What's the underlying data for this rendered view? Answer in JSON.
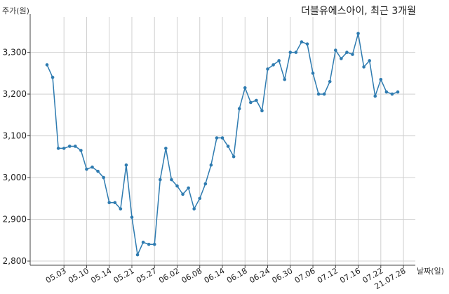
{
  "chart_data": {
    "type": "line",
    "title": "더블유에스아이, 최근 3개월",
    "ylabel": "주가(원)",
    "xlabel": "날짜(일)",
    "ylim": [
      2790,
      3385
    ],
    "yticks": [
      2800,
      2900,
      3000,
      3100,
      3200,
      3300
    ],
    "ytick_labels": [
      "2,800",
      "2,900",
      "3,000",
      "3,100",
      "3,200",
      "3,300"
    ],
    "xtick_labels": [
      "05.03",
      "05.10",
      "05.14",
      "05.21",
      "05.27",
      "06.02",
      "06.08",
      "06.14",
      "06.18",
      "06.24",
      "06.30",
      "07.06",
      "07.12",
      "07.16",
      "07.22",
      "21.07.28"
    ],
    "xtick_positions": [
      3,
      7,
      11,
      15,
      19,
      23,
      27,
      31,
      35,
      39,
      43,
      47,
      51,
      55,
      59,
      63
    ],
    "grid": true,
    "line_color": "#2e7bb0",
    "series": [
      {
        "values": [
          3270,
          3240,
          3070,
          3070,
          3075,
          3075,
          3065,
          3020,
          3025,
          3015,
          3000,
          2940,
          2940,
          2925,
          3030,
          2905,
          2815,
          2845,
          2840,
          2840,
          2995,
          3070,
          2995,
          2980,
          2960,
          2975,
          2925,
          2950,
          2985,
          3030,
          3095,
          3095,
          3075,
          3050,
          3165,
          3215,
          3180,
          3185,
          3160,
          3260,
          3270,
          3280,
          3235,
          3300,
          3300,
          3325,
          3320,
          3250,
          3200,
          3200,
          3230,
          3305,
          3285,
          3300,
          3295,
          3345,
          3265,
          3280,
          3195,
          3235,
          3205,
          3200,
          3205
        ]
      }
    ]
  }
}
